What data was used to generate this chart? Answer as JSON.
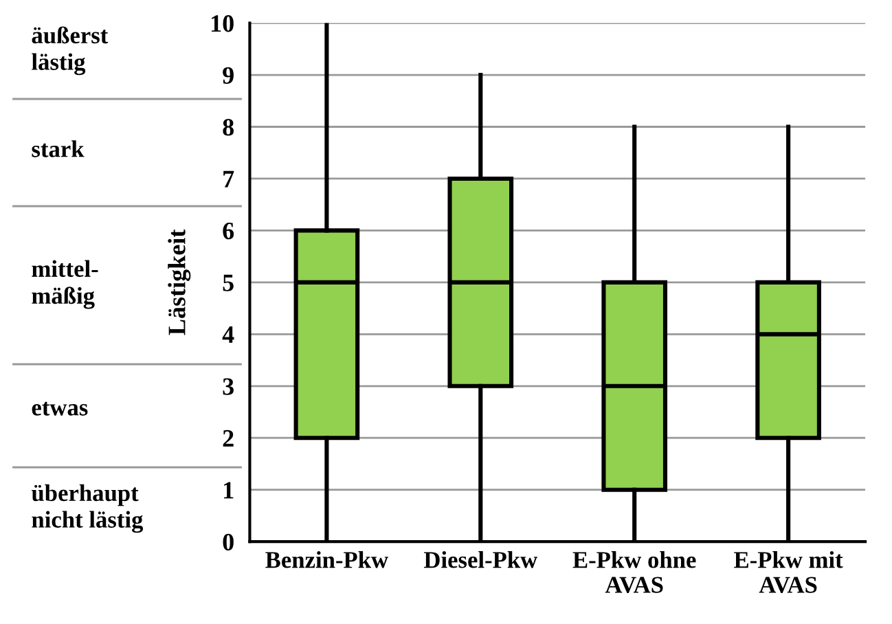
{
  "chart_data": {
    "type": "box",
    "ylabel": "Lästigkeit",
    "categories": [
      "Benzin-Pkw",
      "Diesel-Pkw",
      "E-Pkw ohne\nAVAS",
      "E-Pkw mit\nAVAS"
    ],
    "boxes": [
      {
        "low": 0,
        "q1": 2,
        "median": 5,
        "q3": 6,
        "high": 10
      },
      {
        "low": 0,
        "q1": 3,
        "median": 5,
        "q3": 7,
        "high": 9
      },
      {
        "low": 0,
        "q1": 1,
        "median": 3,
        "q3": 5,
        "high": 8
      },
      {
        "low": 0,
        "q1": 2,
        "median": 4,
        "q3": 5,
        "high": 8
      }
    ],
    "color": "#92d050",
    "ylim": [
      0,
      10
    ],
    "yticks": [
      0,
      1,
      2,
      3,
      4,
      5,
      6,
      7,
      8,
      9,
      10
    ],
    "grid": "y",
    "annotations": [
      "äußerst\nlästig",
      "stark",
      "mittel-\nmäßig",
      "etwas",
      "überhaupt\nnicht lästig"
    ]
  }
}
